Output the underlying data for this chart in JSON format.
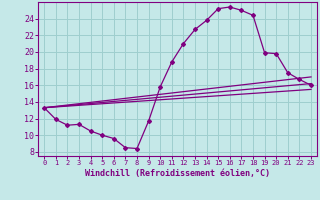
{
  "xlabel": "Windchill (Refroidissement éolien,°C)",
  "bg_color": "#c5e8e8",
  "grid_color": "#9ecece",
  "line_color": "#800080",
  "xlim": [
    -0.5,
    23.5
  ],
  "ylim": [
    7.5,
    26.0
  ],
  "yticks": [
    8,
    10,
    12,
    14,
    16,
    18,
    20,
    22,
    24
  ],
  "xticks": [
    0,
    1,
    2,
    3,
    4,
    5,
    6,
    7,
    8,
    9,
    10,
    11,
    12,
    13,
    14,
    15,
    16,
    17,
    18,
    19,
    20,
    21,
    22,
    23
  ],
  "series1_x": [
    0,
    1,
    2,
    3,
    4,
    5,
    6,
    7,
    8,
    9,
    10,
    11,
    12,
    13,
    14,
    15,
    16,
    17,
    18,
    19,
    20,
    21,
    22,
    23
  ],
  "series1_y": [
    13.3,
    11.9,
    11.2,
    11.3,
    10.5,
    10.0,
    9.6,
    8.5,
    8.4,
    11.7,
    15.8,
    18.8,
    21.0,
    22.7,
    23.8,
    25.2,
    25.4,
    25.0,
    24.4,
    19.9,
    19.8,
    17.5,
    16.7,
    16.0
  ],
  "series2_x": [
    0,
    23
  ],
  "series2_y": [
    13.3,
    15.5
  ],
  "series3_x": [
    0,
    23
  ],
  "series3_y": [
    13.3,
    16.2
  ],
  "series4_x": [
    0,
    23
  ],
  "series4_y": [
    13.3,
    17.0
  ]
}
